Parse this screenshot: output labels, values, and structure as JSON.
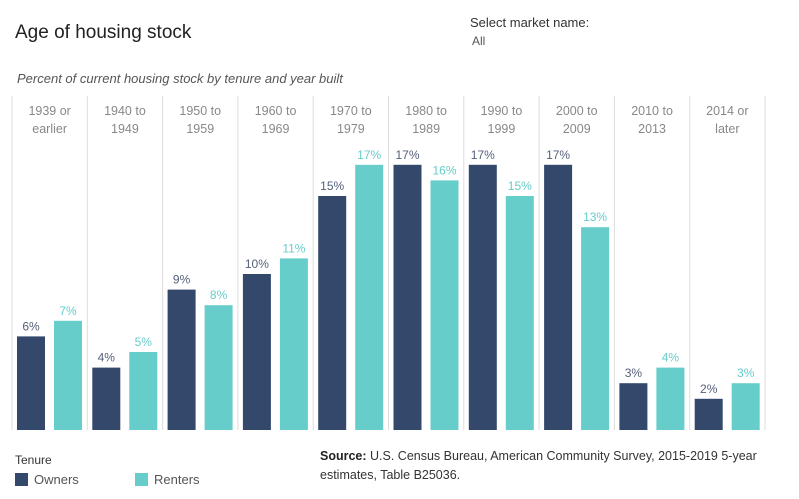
{
  "title": "Age of housing stock",
  "filter": {
    "label": "Select market name:",
    "value": "All"
  },
  "subtitle": "Percent of current housing stock by tenure and year built",
  "colors": {
    "owners": "#33486a",
    "renters": "#66cdcb",
    "grid": "#dddddd",
    "owner_label": "#55607a",
    "renter_label": "#66cdcb"
  },
  "legend": {
    "title": "Tenure",
    "items": [
      {
        "label": "Owners",
        "color": "#33486a"
      },
      {
        "label": "Renters",
        "color": "#66cdcb"
      }
    ]
  },
  "source": {
    "label": "Source:",
    "text": " U.S. Census Bureau, American Community Survey, 2015-2019 5-year estimates, Table B25036."
  },
  "chart_data": {
    "type": "bar",
    "categories": [
      [
        "1939 or",
        "earlier"
      ],
      [
        "1940 to",
        "1949"
      ],
      [
        "1950 to",
        "1959"
      ],
      [
        "1960 to",
        "1969"
      ],
      [
        "1970 to",
        "1979"
      ],
      [
        "1980 to",
        "1989"
      ],
      [
        "1990 to",
        "1999"
      ],
      [
        "2000 to",
        "2009"
      ],
      [
        "2010 to",
        "2013"
      ],
      [
        "2014 or",
        "later"
      ]
    ],
    "series": [
      {
        "name": "Owners",
        "values": [
          6,
          4,
          9,
          10,
          15,
          17,
          17,
          17,
          3,
          2
        ],
        "labels": [
          "6%",
          "4%",
          "9%",
          "10%",
          "15%",
          "17%",
          "17%",
          "17%",
          "3%",
          "2%"
        ]
      },
      {
        "name": "Renters",
        "values": [
          7,
          5,
          8,
          11,
          17,
          16,
          15,
          13,
          4,
          3
        ],
        "labels": [
          "7%",
          "5%",
          "8%",
          "11%",
          "17%",
          "16%",
          "15%",
          "13%",
          "4%",
          "3%"
        ]
      }
    ],
    "ylim": [
      0,
      20
    ],
    "grid": "vertical separators between categories",
    "legend_position": "bottom-left"
  }
}
